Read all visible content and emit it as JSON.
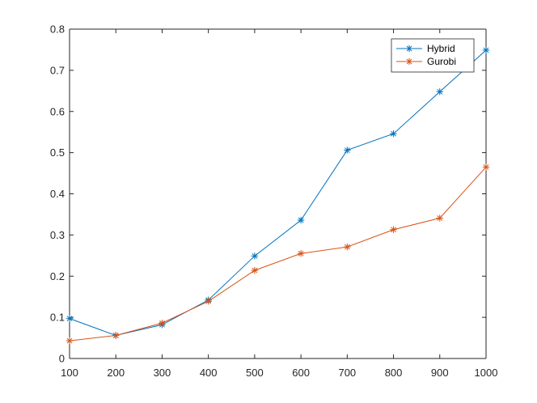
{
  "chart_data": {
    "type": "line",
    "title": "",
    "xlabel": "",
    "ylabel": "",
    "x": [
      100,
      200,
      300,
      400,
      500,
      600,
      700,
      800,
      900,
      1000
    ],
    "xlim": [
      100,
      1000
    ],
    "ylim": [
      0,
      0.8
    ],
    "xticks": [
      100,
      200,
      300,
      400,
      500,
      600,
      700,
      800,
      900,
      1000
    ],
    "yticks": [
      0,
      0.1,
      0.2,
      0.3,
      0.4,
      0.5,
      0.6,
      0.7,
      0.8
    ],
    "xtick_labels": [
      "100",
      "200",
      "300",
      "400",
      "500",
      "600",
      "700",
      "800",
      "900",
      "1000"
    ],
    "ytick_labels": [
      "0",
      "0.1",
      "0.2",
      "0.3",
      "0.4",
      "0.5",
      "0.6",
      "0.7",
      "0.8"
    ],
    "grid": false,
    "legend_position": "top-right",
    "marker": "asterisk",
    "series": [
      {
        "name": "Hybrid",
        "color": "#0072bd",
        "values": [
          0.097,
          0.056,
          0.082,
          0.142,
          0.249,
          0.336,
          0.506,
          0.546,
          0.648,
          0.749
        ]
      },
      {
        "name": "Gurobi",
        "color": "#d95319",
        "values": [
          0.043,
          0.056,
          0.086,
          0.139,
          0.214,
          0.255,
          0.271,
          0.313,
          0.341,
          0.465
        ]
      }
    ]
  }
}
